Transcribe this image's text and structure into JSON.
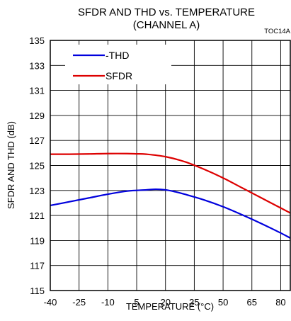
{
  "chart_data": {
    "type": "line",
    "title": "SFDR AND THD vs. TEMPERATURE",
    "subtitle": "(CHANNEL A)",
    "tag": "TOC14A",
    "xlabel": "TEMPERATURE (°C)",
    "ylabel": "SFDR AND THD  (dB)",
    "xlim": [
      -40,
      85
    ],
    "ylim": [
      115,
      135
    ],
    "xticks": [
      -40,
      -25,
      -10,
      5,
      20,
      35,
      50,
      65,
      80
    ],
    "xtick_labels": [
      "-40",
      "-25",
      "-10",
      "5",
      "20",
      "35",
      "50",
      "65",
      "80"
    ],
    "yticks": [
      115,
      117,
      119,
      121,
      123,
      125,
      127,
      129,
      131,
      133,
      135
    ],
    "ytick_labels": [
      "115",
      "117",
      "119",
      "121",
      "123",
      "125",
      "127",
      "129",
      "131",
      "133",
      "135"
    ],
    "grid": true,
    "legend_position": "top-left",
    "series": [
      {
        "name": "-THD",
        "color": "#0000dd",
        "x": [
          -40,
          -30,
          -20,
          -10,
          0,
          10,
          15,
          20,
          25,
          30,
          40,
          50,
          60,
          70,
          80,
          85
        ],
        "y": [
          121.8,
          122.1,
          122.4,
          122.7,
          122.95,
          123.05,
          123.1,
          123.05,
          122.9,
          122.7,
          122.25,
          121.7,
          121.05,
          120.35,
          119.6,
          119.2
        ]
      },
      {
        "name": "SFDR",
        "color": "#dd0000",
        "x": [
          -40,
          -30,
          -20,
          -10,
          0,
          5,
          10,
          20,
          30,
          40,
          50,
          60,
          70,
          80,
          85
        ],
        "y": [
          125.9,
          125.9,
          125.92,
          125.95,
          125.95,
          125.93,
          125.9,
          125.7,
          125.3,
          124.7,
          124.0,
          123.2,
          122.4,
          121.6,
          121.2
        ]
      }
    ]
  }
}
